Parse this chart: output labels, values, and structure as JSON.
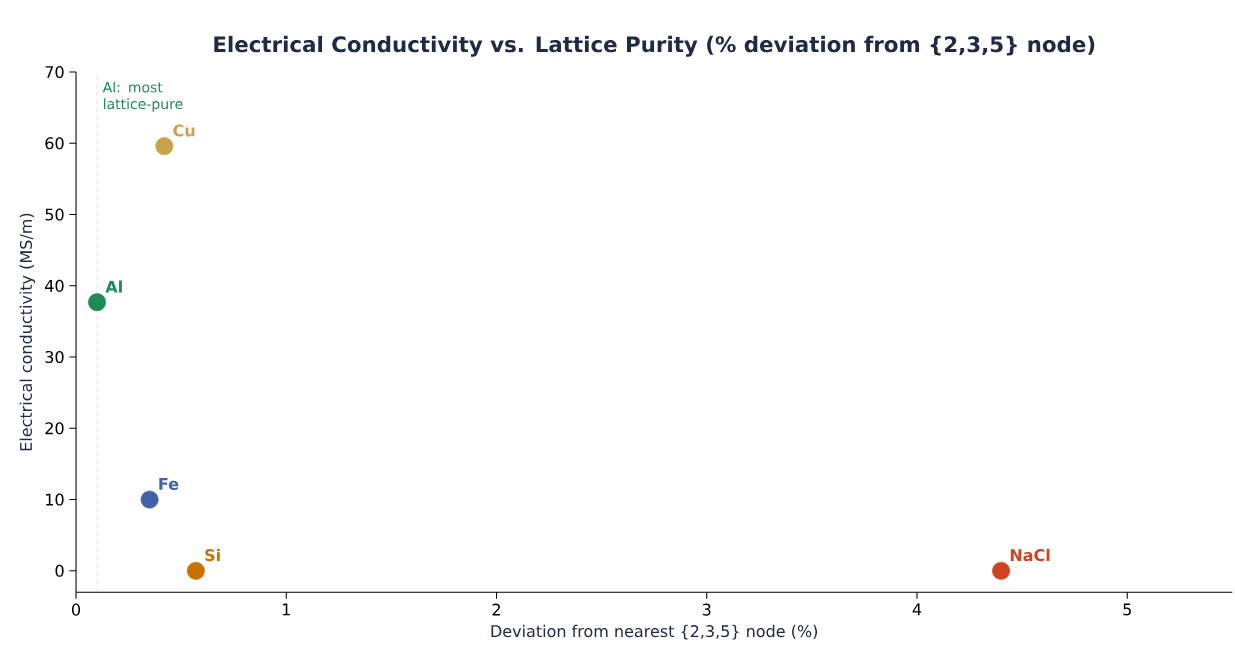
{
  "chart_data": {
    "type": "scatter",
    "title": "Electrical Conductivity vs. Lattice Purity (% deviation from {2,3,5} node)",
    "xlabel": "Deviation from nearest {2,3,5} node (%)",
    "ylabel": "Electrical conductivity (MS/m)",
    "series": [
      {
        "name": "Al",
        "color": "#1e8a55",
        "x": [
          0.1
        ],
        "values": [
          37.7
        ]
      },
      {
        "name": "Cu",
        "color": "#c9a24e",
        "x": [
          0.42
        ],
        "values": [
          59.6
        ]
      },
      {
        "name": "Fe",
        "color": "#4262a8",
        "x": [
          0.35
        ],
        "values": [
          10.0
        ]
      },
      {
        "name": "Si",
        "color": "#c87200",
        "x": [
          0.57
        ],
        "values": [
          0.0
        ]
      },
      {
        "name": "NaCl",
        "color": "#cf4222",
        "x": [
          4.4
        ],
        "values": [
          0.0
        ]
      }
    ],
    "xlim": [
      0,
      5.5
    ],
    "ylim": [
      -3,
      70
    ],
    "xticks": [
      0,
      1,
      2,
      3,
      4,
      5
    ],
    "yticks": [
      0,
      10,
      20,
      30,
      40,
      50,
      60,
      70
    ],
    "ref_lines": [
      {
        "axis": "x",
        "value": 0.1,
        "label": "Al: most lattice-pure",
        "color": "#c8c8c8",
        "line_style": "dashed"
      }
    ],
    "grid": false,
    "legend": false
  }
}
